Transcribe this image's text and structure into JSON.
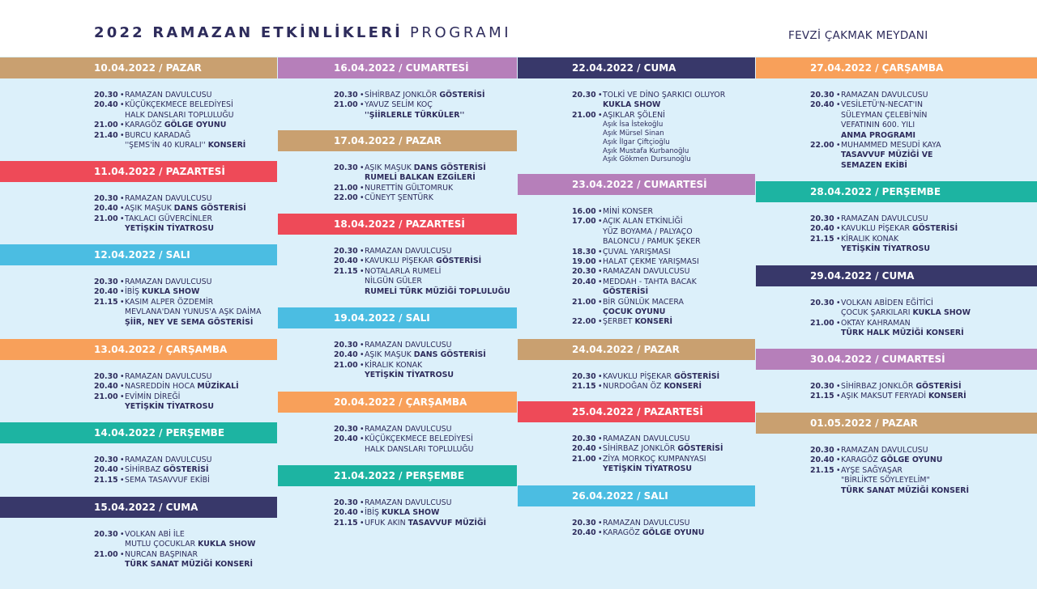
{
  "header": {
    "title_bold": "2022 RAMAZAN ETKİNLİKLERİ",
    "title_light": "PROGRAMI",
    "venue": "FEVZİ ÇAKMAK MEYDANI"
  },
  "colors": {
    "tan": "#c9a070",
    "red": "#ee4a58",
    "cyan": "#4bbde2",
    "orange": "#f8a05a",
    "teal": "#1db4a2",
    "navy": "#38386a",
    "purple": "#b67fba",
    "text": "#2e2c5c",
    "background": "#dcf0fa"
  },
  "columns": [
    {
      "days": [
        {
          "date": "10.04.2022 / PAZAR",
          "color": "tan",
          "items": [
            {
              "time": "20.30",
              "lines": [
                "RAMAZAN DAVULCUSU"
              ]
            },
            {
              "time": "20.40",
              "lines": [
                "KÜÇÜKÇEKMECE BELEDİYESİ",
                "HALK DANSLARI TOPLULUĞU"
              ]
            },
            {
              "time": "21.00",
              "lines": [
                "KARAGÖZ |GÖLGE OYUNU"
              ]
            },
            {
              "time": "21.40",
              "lines": [
                "BURCU KARADAĞ",
                "''ŞEMS'İN 40 KURALI'' |KONSERİ"
              ]
            }
          ]
        },
        {
          "date": "11.04.2022 / PAZARTESİ",
          "color": "red",
          "items": [
            {
              "time": "20.30",
              "lines": [
                "RAMAZAN DAVULCUSU"
              ]
            },
            {
              "time": "20.40",
              "lines": [
                "AŞIK MAŞUK |DANS GÖSTERİSİ"
              ]
            },
            {
              "time": "21.00",
              "lines": [
                "TAKLACI GÜVERCİNLER",
                "|YETİŞKİN TİYATROSU"
              ]
            }
          ]
        },
        {
          "date": "12.04.2022 / SALI",
          "color": "cyan",
          "items": [
            {
              "time": "20.30",
              "lines": [
                "RAMAZAN DAVULCUSU"
              ]
            },
            {
              "time": "20.40",
              "lines": [
                "İBİŞ |KUKLA SHOW"
              ]
            },
            {
              "time": "21.15",
              "lines": [
                "KASIM ALPER ÖZDEMİR",
                "MEVLANA'DAN YUNUS'A AŞK DAİMA",
                "|ŞİİR, NEY VE SEMA GÖSTERİSİ"
              ]
            }
          ]
        },
        {
          "date": "13.04.2022 / ÇARŞAMBA",
          "color": "orange",
          "items": [
            {
              "time": "20.30",
              "lines": [
                "RAMAZAN DAVULCUSU"
              ]
            },
            {
              "time": "20.40",
              "lines": [
                "NASREDDİN HOCA |MÜZİKALİ"
              ]
            },
            {
              "time": "21.00",
              "lines": [
                "EVİMİN DİREĞİ",
                "|YETİŞKİN TİYATROSU"
              ]
            }
          ]
        },
        {
          "date": "14.04.2022 / PERŞEMBE",
          "color": "teal",
          "items": [
            {
              "time": "20.30",
              "lines": [
                "RAMAZAN DAVULCUSU"
              ]
            },
            {
              "time": "20.40",
              "lines": [
                "SİHİRBAZ |GÖSTERİSİ"
              ]
            },
            {
              "time": "21.15",
              "lines": [
                "SEMA TASAVVUF EKİBİ"
              ]
            }
          ]
        },
        {
          "date": "15.04.2022 / CUMA",
          "color": "navy",
          "items": [
            {
              "time": "20.30",
              "lines": [
                "VOLKAN ABİ İLE",
                "MUTLU ÇOCUKLAR |KUKLA SHOW"
              ]
            },
            {
              "time": "21.00",
              "lines": [
                "NURCAN BAŞPINAR",
                "|TÜRK SANAT MÜZİĞİ KONSERİ"
              ]
            }
          ]
        }
      ]
    },
    {
      "days": [
        {
          "date": "16.04.2022 / CUMARTESİ",
          "color": "purple",
          "items": [
            {
              "time": "20.30",
              "lines": [
                "SİHİRBAZ JONKLÖR |GÖSTERİSİ"
              ]
            },
            {
              "time": "21.00",
              "lines": [
                "YAVUZ SELİM KOÇ",
                "|''ŞİİRLERLE TÜRKÜLER''"
              ]
            }
          ]
        },
        {
          "date": "17.04.2022 / PAZAR",
          "color": "tan",
          "items": [
            {
              "time": "20.30",
              "lines": [
                "AŞIK MAŞUK |DANS GÖSTERİSİ",
                "|RUMELİ BALKAN EZGİLERİ"
              ]
            },
            {
              "time": "21.00",
              "lines": [
                "NURETTİN GÜLTOMRUK"
              ]
            },
            {
              "time": "22.00",
              "lines": [
                "CÜNEYT ŞENTÜRK"
              ]
            }
          ]
        },
        {
          "date": "18.04.2022 / PAZARTESİ",
          "color": "red",
          "items": [
            {
              "time": "20.30",
              "lines": [
                "RAMAZAN DAVULCUSU"
              ]
            },
            {
              "time": "20.40",
              "lines": [
                "KAVUKLU PİŞEKAR |GÖSTERİSİ"
              ]
            },
            {
              "time": "21.15",
              "lines": [
                "NOTALARLA RUMELİ",
                "NİLGÜN GÜLER",
                "|RUMELİ TÜRK MÜZİĞİ TOPLULUĞU"
              ]
            }
          ]
        },
        {
          "date": "19.04.2022 / SALI",
          "color": "cyan",
          "items": [
            {
              "time": "20.30",
              "lines": [
                "RAMAZAN DAVULCUSU"
              ]
            },
            {
              "time": "20.40",
              "lines": [
                "AŞIK MAŞUK |DANS GÖSTERİSİ"
              ]
            },
            {
              "time": "21.00",
              "lines": [
                "KİRALIK KONAK",
                "|YETİŞKİN TİYATROSU"
              ]
            }
          ]
        },
        {
          "date": "20.04.2022 / ÇARŞAMBA",
          "color": "orange",
          "items": [
            {
              "time": "20.30",
              "lines": [
                "RAMAZAN DAVULCUSU"
              ]
            },
            {
              "time": "20.40",
              "lines": [
                "KÜÇÜKÇEKMECE BELEDİYESİ",
                "HALK DANSLARI TOPLULUĞU"
              ]
            }
          ]
        },
        {
          "date": "21.04.2022 / PERŞEMBE",
          "color": "teal",
          "items": [
            {
              "time": "20.30",
              "lines": [
                "RAMAZAN DAVULCUSU"
              ]
            },
            {
              "time": "20.40",
              "lines": [
                "İBİŞ |KUKLA SHOW"
              ]
            },
            {
              "time": "21.15",
              "lines": [
                "UFUK AKIN |TASAVVUF MÜZİĞİ"
              ]
            }
          ]
        }
      ]
    },
    {
      "days": [
        {
          "date": "22.04.2022 / CUMA",
          "color": "navy",
          "items": [
            {
              "time": "20.30",
              "lines": [
                "TOLKİ VE DİNO ŞARKICI OLUYOR",
                "|KUKLA SHOW"
              ]
            },
            {
              "time": "21.00",
              "lines": [
                "AŞIKLAR ŞÖLENİ"
              ],
              "sub": [
                "Aşık İsa İstekoğlu",
                "Aşık Mürsel Sinan",
                "Aşık İlgar Çiftçioğlu",
                "Aşık Mustafa Kurbanoğlu",
                "Aşık Gökmen Dursunoğlu"
              ]
            }
          ]
        },
        {
          "date": "23.04.2022 / CUMARTESİ",
          "color": "purple",
          "items": [
            {
              "time": "16.00",
              "lines": [
                "MİNİ KONSER"
              ]
            },
            {
              "time": "17.00",
              "lines": [
                "AÇIK ALAN ETKİNLİĞİ",
                "YÜZ BOYAMA / PALYAÇO",
                "BALONCU / PAMUK ŞEKER"
              ]
            },
            {
              "time": "18.30",
              "lines": [
                "ÇUVAL YARIŞMASI"
              ]
            },
            {
              "time": "19.00",
              "lines": [
                "HALAT ÇEKME YARIŞMASI"
              ]
            },
            {
              "time": "20.30",
              "lines": [
                "RAMAZAN DAVULCUSU"
              ]
            },
            {
              "time": "20.40",
              "lines": [
                "MEDDAH - TAHTA BACAK",
                "|GÖSTERİSİ"
              ]
            },
            {
              "time": "21.00",
              "lines": [
                "BİR GÜNLÜK MACERA",
                "|ÇOCUK OYUNU"
              ]
            },
            {
              "time": "22.00",
              "lines": [
                "ŞERBET |KONSERİ"
              ]
            }
          ]
        },
        {
          "date": "24.04.2022 / PAZAR",
          "color": "tan",
          "items": [
            {
              "time": "20.30",
              "lines": [
                "KAVUKLU PİŞEKAR |GÖSTERİSİ"
              ]
            },
            {
              "time": "21.15",
              "lines": [
                "NURDOĞAN ÖZ |KONSERİ"
              ]
            }
          ]
        },
        {
          "date": "25.04.2022 / PAZARTESİ",
          "color": "red",
          "items": [
            {
              "time": "20.30",
              "lines": [
                "RAMAZAN DAVULCUSU"
              ]
            },
            {
              "time": "20.40",
              "lines": [
                "SİHİRBAZ JONKLÖR |GÖSTERİSİ"
              ]
            },
            {
              "time": "21.00",
              "lines": [
                "ZİYA MORKOÇ KUMPANYASI",
                "|YETİŞKİN TİYATROSU"
              ]
            }
          ]
        },
        {
          "date": "26.04.2022 / SALI",
          "color": "cyan",
          "items": [
            {
              "time": "20.30",
              "lines": [
                "RAMAZAN DAVULCUSU"
              ]
            },
            {
              "time": "20.40",
              "lines": [
                "KARAGÖZ |GÖLGE OYUNU"
              ]
            }
          ]
        }
      ]
    },
    {
      "days": [
        {
          "date": "27.04.2022 / ÇARŞAMBA",
          "color": "orange",
          "items": [
            {
              "time": "20.30",
              "lines": [
                "RAMAZAN DAVULCUSU"
              ]
            },
            {
              "time": "20.40",
              "lines": [
                "VESİLETÜ'N-NECAT'IN",
                "SÜLEYMAN ÇELEBİ'NİN",
                "VEFATININ 600. YILI",
                "|ANMA PROGRAMI"
              ]
            },
            {
              "time": "22.00",
              "lines": [
                "MUHAMMED MESUDİ KAYA",
                "|TASAVVUF MÜZİĞİ VE",
                "|SEMAZEN EKİBİ"
              ]
            }
          ]
        },
        {
          "date": "28.04.2022 / PERŞEMBE",
          "color": "teal",
          "items": [
            {
              "time": "20.30",
              "lines": [
                "RAMAZAN DAVULCUSU"
              ]
            },
            {
              "time": "20.40",
              "lines": [
                "KAVUKLU PİŞEKAR |GÖSTERİSİ"
              ]
            },
            {
              "time": "21.15",
              "lines": [
                "KİRALIK KONAK",
                "|YETİŞKİN TİYATROSU"
              ]
            }
          ]
        },
        {
          "date": "29.04.2022 / CUMA",
          "color": "navy",
          "items": [
            {
              "time": "20.30",
              "lines": [
                "VOLKAN ABİDEN EĞİTİCİ",
                "ÇOCUK ŞARKILARI |KUKLA SHOW"
              ]
            },
            {
              "time": "21.00",
              "lines": [
                "OKTAY KAHRAMAN",
                "|TÜRK HALK MÜZİĞİ KONSERİ"
              ]
            }
          ]
        },
        {
          "date": "30.04.2022 / CUMARTESİ",
          "color": "purple",
          "items": [
            {
              "time": "20.30",
              "lines": [
                "SİHİRBAZ JONKLÖR |GÖSTERİSİ"
              ]
            },
            {
              "time": "21.15",
              "lines": [
                "AŞIK MAKSUT FERYADİ |KONSERİ"
              ]
            }
          ]
        },
        {
          "date": "01.05.2022 / PAZAR",
          "color": "tan",
          "items": [
            {
              "time": "20.30",
              "lines": [
                "RAMAZAN DAVULCUSU"
              ]
            },
            {
              "time": "20.40",
              "lines": [
                "KARAGÖZ |GÖLGE OYUNU"
              ]
            },
            {
              "time": "21.15",
              "lines": [
                "AYŞE SAĞYAŞAR",
                "\"BİRLİKTE SÖYLEYELİM\"",
                "|TÜRK SANAT MÜZİĞİ KONSERİ"
              ]
            }
          ]
        }
      ]
    }
  ]
}
